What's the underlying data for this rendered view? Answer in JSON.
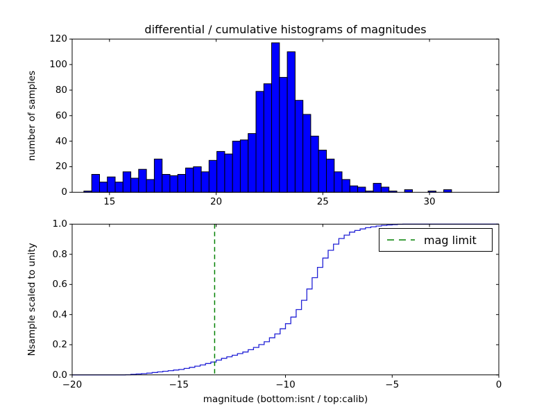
{
  "figure": {
    "title": "differential / cumulative histograms of magnitudes",
    "background_color": "#ffffff",
    "axis_color": "#000000"
  },
  "chart_data": [
    {
      "id": "differential-histogram",
      "type": "bar",
      "subtype": "histogram",
      "title": "differential / cumulative histograms of magnitudes",
      "xlabel": "",
      "ylabel": "number of samples",
      "xlim": [
        13.25,
        33.25
      ],
      "ylim": [
        0,
        120
      ],
      "grid": false,
      "xticks": {
        "values": [
          15,
          20,
          25,
          30
        ],
        "labels": [
          "15",
          "20",
          "25",
          "30"
        ]
      },
      "yticks": {
        "values": [
          0,
          20,
          40,
          60,
          80,
          100,
          120
        ],
        "labels": [
          "0",
          "20",
          "40",
          "60",
          "80",
          "100",
          "120"
        ]
      },
      "bin_start": 13.8,
      "bin_width": 0.3667,
      "values": [
        1,
        14,
        8,
        12,
        8,
        16,
        11,
        18,
        10,
        26,
        14,
        13,
        14,
        19,
        20,
        16,
        25,
        32,
        30,
        40,
        41,
        46,
        79,
        85,
        117,
        90,
        110,
        72,
        61,
        44,
        33,
        26,
        16,
        10,
        5,
        4,
        1,
        7,
        4,
        1,
        0,
        2,
        0,
        0,
        1,
        0,
        2
      ],
      "bar_color": "#0000ff",
      "bar_edge_color": "#000000"
    },
    {
      "id": "cumulative-histogram",
      "type": "line",
      "subtype": "cumulative-step",
      "xlabel": "magnitude (bottom:isnt / top:calib)",
      "ylabel": "Nsample scaled to unity",
      "xlim": [
        -20,
        0
      ],
      "ylim": [
        0.0,
        1.0
      ],
      "grid": false,
      "xticks": {
        "values": [
          -20,
          -15,
          -10,
          -5,
          0
        ],
        "labels": [
          "−20",
          "−15",
          "−10",
          "−5",
          "0"
        ]
      },
      "yticks": {
        "values": [
          0.0,
          0.2,
          0.4,
          0.6,
          0.8,
          1.0
        ],
        "labels": [
          "0.0",
          "0.2",
          "0.4",
          "0.6",
          "0.8",
          "1.0"
        ]
      },
      "step_width": 0.25,
      "anchors": [
        [
          -20,
          0
        ],
        [
          -17.6,
          0
        ],
        [
          -17.2,
          0.004
        ],
        [
          -16.6,
          0.01
        ],
        [
          -16,
          0.02
        ],
        [
          -15.5,
          0.028
        ],
        [
          -15,
          0.036
        ],
        [
          -14.5,
          0.05
        ],
        [
          -14,
          0.066
        ],
        [
          -13.5,
          0.085
        ],
        [
          -13.25,
          0.098
        ],
        [
          -13,
          0.11
        ],
        [
          -12.5,
          0.13
        ],
        [
          -12,
          0.152
        ],
        [
          -11.5,
          0.182
        ],
        [
          -11,
          0.22
        ],
        [
          -10.5,
          0.272
        ],
        [
          -10,
          0.34
        ],
        [
          -9.6,
          0.41
        ],
        [
          -9.3,
          0.48
        ],
        [
          -9,
          0.57
        ],
        [
          -8.7,
          0.66
        ],
        [
          -8.4,
          0.74
        ],
        [
          -8.1,
          0.81
        ],
        [
          -7.8,
          0.86
        ],
        [
          -7.5,
          0.905
        ],
        [
          -7.2,
          0.932
        ],
        [
          -7,
          0.947
        ],
        [
          -6.6,
          0.965
        ],
        [
          -6.2,
          0.978
        ],
        [
          -5.8,
          0.987
        ],
        [
          -5.4,
          0.993
        ],
        [
          -5,
          0.997
        ],
        [
          -4.6,
          1.0
        ],
        [
          0,
          1.0
        ]
      ],
      "line_color": "#2121d6",
      "vline": {
        "x": -13.32,
        "color": "#008000",
        "style": "dashed",
        "label": "mag limit"
      },
      "legend": {
        "label": "mag limit",
        "position": "upper right"
      }
    }
  ]
}
